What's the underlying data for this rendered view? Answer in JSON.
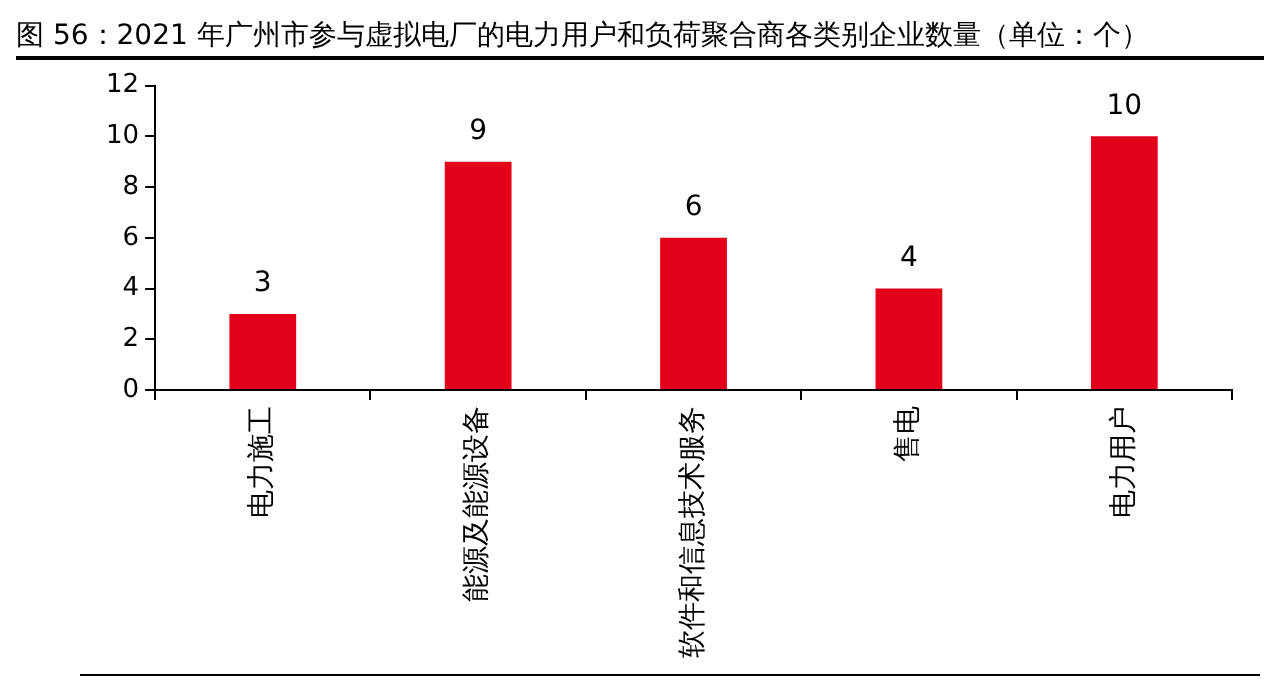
{
  "chart_data": {
    "type": "bar",
    "title": "图 56：2021 年广州市参与虚拟电厂的电力用户和负荷聚合商各类别企业数量（单位：个）",
    "categories": [
      "电力施工",
      "能源及能源设备",
      "软件和信息技术服务",
      "售电",
      "电力用户"
    ],
    "values": [
      3,
      9,
      6,
      4,
      10
    ],
    "color": "#e2001a",
    "ylim": [
      0,
      12
    ],
    "yticks": [
      0,
      2,
      4,
      6,
      8,
      10,
      12
    ],
    "grid": false,
    "data_labels": true
  }
}
